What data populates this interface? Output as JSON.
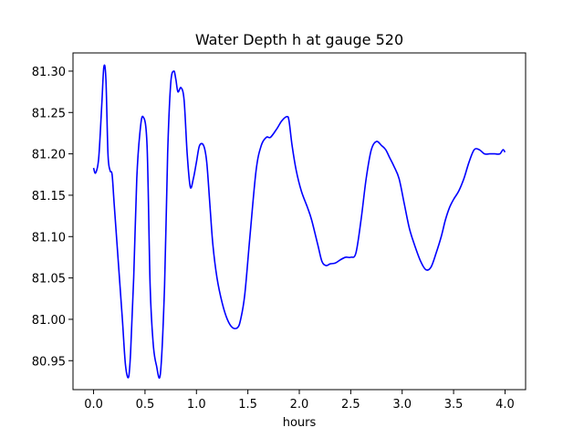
{
  "chart_data": {
    "type": "line",
    "title": "Water Depth h at gauge 520",
    "xlabel": "hours",
    "ylabel": "",
    "xlim": [
      -0.2,
      4.2
    ],
    "ylim": [
      80.915,
      81.322
    ],
    "xticks": [
      0.0,
      0.5,
      1.0,
      1.5,
      2.0,
      2.5,
      3.0,
      3.5,
      4.0
    ],
    "xtick_labels": [
      "0.0",
      "0.5",
      "1.0",
      "1.5",
      "2.0",
      "2.5",
      "3.0",
      "3.5",
      "4.0"
    ],
    "yticks": [
      80.95,
      81.0,
      81.05,
      81.1,
      81.15,
      81.2,
      81.25,
      81.3
    ],
    "ytick_labels": [
      "80.95",
      "81.00",
      "81.05",
      "81.10",
      "81.15",
      "81.20",
      "81.25",
      "81.30"
    ],
    "grid": false,
    "series": [
      {
        "color": "#0000ff",
        "x": [
          0.0,
          0.02,
          0.05,
          0.08,
          0.1,
          0.12,
          0.14,
          0.16,
          0.18,
          0.2,
          0.24,
          0.28,
          0.31,
          0.34,
          0.36,
          0.39,
          0.42,
          0.45,
          0.48,
          0.52,
          0.55,
          0.58,
          0.61,
          0.65,
          0.69,
          0.72,
          0.75,
          0.78,
          0.8,
          0.82,
          0.85,
          0.88,
          0.91,
          0.94,
          0.97,
          1.0,
          1.03,
          1.07,
          1.1,
          1.13,
          1.16,
          1.2,
          1.25,
          1.3,
          1.35,
          1.4,
          1.43,
          1.47,
          1.52,
          1.58,
          1.63,
          1.68,
          1.72,
          1.78,
          1.83,
          1.88,
          1.9,
          1.93,
          1.97,
          2.02,
          2.08,
          2.12,
          2.18,
          2.22,
          2.26,
          2.3,
          2.35,
          2.4,
          2.45,
          2.5,
          2.55,
          2.6,
          2.65,
          2.7,
          2.75,
          2.8,
          2.84,
          2.88,
          2.92,
          2.97,
          3.02,
          3.07,
          3.12,
          3.18,
          3.23,
          3.28,
          3.33,
          3.38,
          3.42,
          3.46,
          3.5,
          3.55,
          3.6,
          3.65,
          3.7,
          3.75,
          3.8,
          3.85,
          3.9,
          3.95,
          3.98,
          4.0
        ],
        "y": [
          81.183,
          81.177,
          81.195,
          81.26,
          81.305,
          81.29,
          81.2,
          81.18,
          81.175,
          81.14,
          81.07,
          81.0,
          80.945,
          80.93,
          80.96,
          81.05,
          81.17,
          81.225,
          81.245,
          81.21,
          81.04,
          80.97,
          80.945,
          80.935,
          81.04,
          81.2,
          81.285,
          81.3,
          81.29,
          81.275,
          81.28,
          81.265,
          81.2,
          81.16,
          81.17,
          81.19,
          81.21,
          81.21,
          81.19,
          81.14,
          81.09,
          81.05,
          81.02,
          81.0,
          80.99,
          80.99,
          81.0,
          81.03,
          81.1,
          81.18,
          81.21,
          81.22,
          81.22,
          81.23,
          81.24,
          81.245,
          81.24,
          81.21,
          81.18,
          81.155,
          81.135,
          81.12,
          81.09,
          81.07,
          81.065,
          81.067,
          81.068,
          81.072,
          81.075,
          81.075,
          81.08,
          81.12,
          81.17,
          81.205,
          81.215,
          81.21,
          81.205,
          81.195,
          81.185,
          81.17,
          81.14,
          81.11,
          81.09,
          81.07,
          81.06,
          81.063,
          81.08,
          81.1,
          81.12,
          81.135,
          81.145,
          81.155,
          81.17,
          81.19,
          81.205,
          81.205,
          81.2,
          81.2,
          81.2,
          81.2,
          81.205,
          81.202
        ]
      }
    ]
  }
}
